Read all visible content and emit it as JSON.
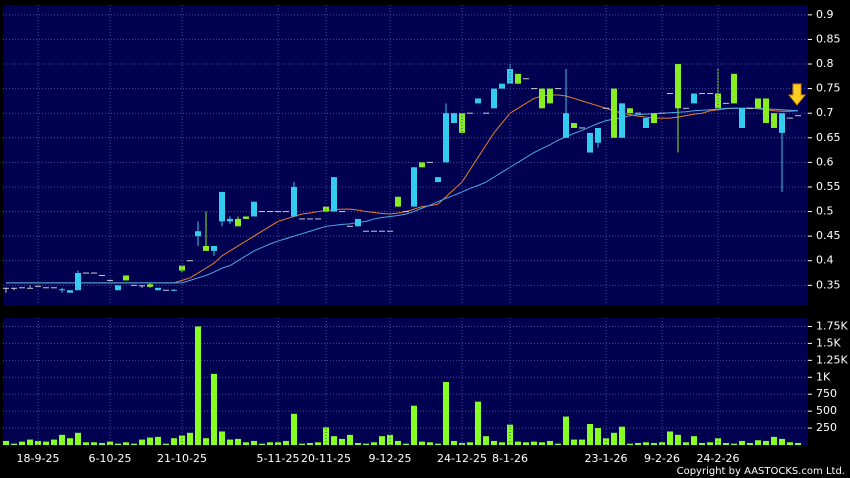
{
  "chart_data": [
    {
      "type": "candlestick",
      "open": [
        0.345,
        0.345,
        0.345,
        0.345,
        0.348,
        0.345,
        0.345,
        0.34,
        0.335,
        0.34,
        0.375,
        0.375,
        0.37,
        0.36,
        0.34,
        0.37,
        0.35,
        0.35,
        0.352,
        0.34,
        0.34,
        0.34,
        0.39,
        0.4,
        0.45,
        0.43,
        0.42,
        0.48,
        0.48,
        0.485,
        0.49,
        0.49,
        0.5,
        0.5,
        0.5,
        0.5,
        0.49,
        0.485,
        0.485,
        0.485,
        0.51,
        0.5,
        0.5,
        0.47,
        0.47,
        0.46,
        0.46,
        0.46,
        0.46,
        0.53,
        0.5,
        0.51,
        0.6,
        0.6,
        0.56,
        0.6,
        0.68,
        0.7,
        0.7,
        0.72,
        0.7,
        0.71,
        0.75,
        0.76,
        0.78,
        0.77,
        0.75,
        0.75,
        0.75,
        0.75,
        0.65,
        0.68,
        0.67,
        0.62,
        0.64,
        0.71,
        0.75,
        0.65,
        0.71,
        0.7,
        0.67,
        0.7,
        0.7,
        0.74,
        0.8,
        0.71,
        0.72,
        0.74,
        0.74,
        0.74,
        0.72,
        0.78,
        0.67,
        0.71,
        0.73,
        0.73,
        0.7,
        0.66,
        0.69,
        0.695
      ],
      "high": [
        0.345,
        0.345,
        0.345,
        0.35,
        0.348,
        0.345,
        0.345,
        0.345,
        0.34,
        0.38,
        0.375,
        0.375,
        0.37,
        0.36,
        0.35,
        0.37,
        0.35,
        0.35,
        0.355,
        0.345,
        0.34,
        0.342,
        0.39,
        0.4,
        0.48,
        0.5,
        0.43,
        0.54,
        0.49,
        0.49,
        0.49,
        0.52,
        0.5,
        0.5,
        0.5,
        0.5,
        0.56,
        0.485,
        0.485,
        0.485,
        0.51,
        0.57,
        0.5,
        0.47,
        0.485,
        0.46,
        0.46,
        0.46,
        0.46,
        0.53,
        0.5,
        0.59,
        0.6,
        0.6,
        0.57,
        0.72,
        0.7,
        0.7,
        0.7,
        0.73,
        0.7,
        0.75,
        0.76,
        0.8,
        0.78,
        0.77,
        0.75,
        0.75,
        0.75,
        0.75,
        0.79,
        0.68,
        0.67,
        0.66,
        0.67,
        0.71,
        0.75,
        0.72,
        0.71,
        0.7,
        0.69,
        0.7,
        0.7,
        0.74,
        0.8,
        0.71,
        0.74,
        0.74,
        0.74,
        0.79,
        0.72,
        0.78,
        0.71,
        0.71,
        0.73,
        0.73,
        0.7,
        0.7,
        0.69,
        0.695
      ],
      "low": [
        0.335,
        0.34,
        0.345,
        0.345,
        0.348,
        0.345,
        0.345,
        0.335,
        0.335,
        0.34,
        0.375,
        0.375,
        0.37,
        0.36,
        0.34,
        0.36,
        0.35,
        0.345,
        0.345,
        0.34,
        0.34,
        0.338,
        0.375,
        0.4,
        0.43,
        0.42,
        0.41,
        0.47,
        0.475,
        0.47,
        0.485,
        0.49,
        0.5,
        0.5,
        0.5,
        0.5,
        0.49,
        0.485,
        0.485,
        0.485,
        0.5,
        0.5,
        0.5,
        0.47,
        0.47,
        0.46,
        0.46,
        0.46,
        0.46,
        0.51,
        0.5,
        0.51,
        0.59,
        0.6,
        0.56,
        0.6,
        0.68,
        0.66,
        0.7,
        0.72,
        0.7,
        0.71,
        0.75,
        0.76,
        0.76,
        0.77,
        0.75,
        0.71,
        0.72,
        0.75,
        0.65,
        0.67,
        0.67,
        0.62,
        0.63,
        0.71,
        0.65,
        0.65,
        0.7,
        0.7,
        0.67,
        0.68,
        0.7,
        0.74,
        0.62,
        0.71,
        0.72,
        0.74,
        0.74,
        0.71,
        0.72,
        0.72,
        0.67,
        0.71,
        0.71,
        0.68,
        0.67,
        0.54,
        0.69,
        0.695
      ],
      "close": [
        0.345,
        0.345,
        0.345,
        0.345,
        0.348,
        0.345,
        0.345,
        0.342,
        0.34,
        0.375,
        0.375,
        0.375,
        0.37,
        0.36,
        0.35,
        0.36,
        0.35,
        0.35,
        0.347,
        0.345,
        0.34,
        0.341,
        0.38,
        0.4,
        0.46,
        0.42,
        0.43,
        0.54,
        0.485,
        0.47,
        0.485,
        0.52,
        0.5,
        0.5,
        0.5,
        0.5,
        0.55,
        0.485,
        0.485,
        0.485,
        0.5,
        0.57,
        0.5,
        0.47,
        0.485,
        0.46,
        0.46,
        0.46,
        0.46,
        0.51,
        0.5,
        0.59,
        0.59,
        0.6,
        0.57,
        0.7,
        0.7,
        0.66,
        0.7,
        0.73,
        0.7,
        0.75,
        0.76,
        0.79,
        0.76,
        0.77,
        0.75,
        0.71,
        0.72,
        0.75,
        0.7,
        0.67,
        0.67,
        0.66,
        0.67,
        0.71,
        0.65,
        0.72,
        0.7,
        0.7,
        0.69,
        0.68,
        0.7,
        0.74,
        0.71,
        0.71,
        0.74,
        0.74,
        0.74,
        0.71,
        0.72,
        0.72,
        0.71,
        0.71,
        0.71,
        0.68,
        0.67,
        0.7,
        0.69,
        0.695
      ],
      "up_color": "#33ccee",
      "down_color": "#88ee22",
      "flat_color": "#cccccc",
      "series": [
        {
          "color": "#e8802a",
          "values": [
            0.355,
            0.355,
            0.355,
            0.355,
            0.355,
            0.355,
            0.355,
            0.355,
            0.355,
            0.355,
            0.355,
            0.355,
            0.355,
            0.355,
            0.355,
            0.355,
            0.355,
            0.355,
            0.355,
            0.355,
            0.355,
            0.355,
            0.36,
            0.365,
            0.375,
            0.385,
            0.395,
            0.41,
            0.42,
            0.43,
            0.44,
            0.45,
            0.46,
            0.47,
            0.48,
            0.485,
            0.49,
            0.495,
            0.497,
            0.5,
            0.502,
            0.504,
            0.505,
            0.505,
            0.503,
            0.5,
            0.498,
            0.496,
            0.495,
            0.497,
            0.5,
            0.505,
            0.51,
            0.512,
            0.515,
            0.53,
            0.545,
            0.56,
            0.585,
            0.61,
            0.635,
            0.66,
            0.68,
            0.7,
            0.71,
            0.72,
            0.73,
            0.735,
            0.737,
            0.737,
            0.735,
            0.73,
            0.725,
            0.72,
            0.715,
            0.71,
            0.705,
            0.7,
            0.697,
            0.694,
            0.692,
            0.69,
            0.69,
            0.69,
            0.692,
            0.695,
            0.698,
            0.7,
            0.705,
            0.707,
            0.709,
            0.71,
            0.71,
            0.71,
            0.709,
            0.707,
            0.705,
            0.704,
            0.704,
            0.705
          ]
        },
        {
          "color": "#4aa8e8",
          "values": [
            0.355,
            0.355,
            0.355,
            0.355,
            0.355,
            0.355,
            0.355,
            0.355,
            0.355,
            0.355,
            0.355,
            0.355,
            0.355,
            0.355,
            0.355,
            0.355,
            0.355,
            0.355,
            0.355,
            0.355,
            0.355,
            0.355,
            0.355,
            0.36,
            0.365,
            0.37,
            0.377,
            0.385,
            0.39,
            0.4,
            0.41,
            0.42,
            0.427,
            0.434,
            0.44,
            0.445,
            0.45,
            0.455,
            0.46,
            0.465,
            0.47,
            0.472,
            0.474,
            0.475,
            0.478,
            0.48,
            0.485,
            0.488,
            0.49,
            0.492,
            0.495,
            0.5,
            0.507,
            0.513,
            0.52,
            0.527,
            0.533,
            0.54,
            0.547,
            0.553,
            0.56,
            0.57,
            0.58,
            0.59,
            0.6,
            0.61,
            0.62,
            0.628,
            0.636,
            0.645,
            0.652,
            0.659,
            0.665,
            0.672,
            0.679,
            0.685,
            0.688,
            0.691,
            0.695,
            0.697,
            0.698,
            0.699,
            0.7,
            0.701,
            0.702,
            0.703,
            0.705,
            0.706,
            0.707,
            0.708,
            0.71,
            0.71,
            0.71,
            0.71,
            0.71,
            0.709,
            0.708,
            0.707,
            0.706,
            0.705
          ]
        }
      ],
      "ylim": [
        0.31,
        0.92
      ],
      "yticks": [
        0.35,
        0.4,
        0.45,
        0.5,
        0.55,
        0.6,
        0.65,
        0.7,
        0.75,
        0.8,
        0.85,
        0.9
      ],
      "grid": true
    },
    {
      "type": "bar",
      "categories": [
        null,
        null,
        null,
        null,
        "18-9-25",
        null,
        null,
        null,
        null,
        null,
        null,
        null,
        null,
        "6-10-25",
        null,
        null,
        null,
        null,
        null,
        null,
        null,
        null,
        "21-10-25",
        null,
        null,
        null,
        null,
        null,
        null,
        null,
        null,
        null,
        null,
        null,
        "5-11-25",
        null,
        null,
        null,
        null,
        null,
        "20-11-25",
        null,
        null,
        null,
        null,
        null,
        null,
        null,
        "9-12-25",
        null,
        null,
        null,
        null,
        null,
        null,
        null,
        null,
        "24-12-25",
        null,
        null,
        null,
        null,
        null,
        "8-1-26",
        null,
        null,
        null,
        null,
        null,
        null,
        null,
        null,
        null,
        null,
        null,
        "23-1-26",
        null,
        null,
        null,
        null,
        null,
        null,
        "9-2-26",
        null,
        null,
        null,
        null,
        null,
        null,
        "24-2-26",
        null,
        null,
        null,
        null,
        null,
        null,
        null,
        null,
        null,
        null
      ],
      "values": [
        60,
        20,
        50,
        80,
        60,
        50,
        80,
        150,
        100,
        180,
        40,
        40,
        30,
        50,
        20,
        40,
        20,
        80,
        110,
        120,
        20,
        100,
        140,
        180,
        1750,
        100,
        1050,
        200,
        80,
        90,
        40,
        60,
        20,
        40,
        40,
        60,
        460,
        20,
        30,
        40,
        260,
        130,
        90,
        150,
        30,
        20,
        40,
        130,
        150,
        60,
        20,
        580,
        50,
        40,
        20,
        930,
        60,
        30,
        40,
        640,
        130,
        60,
        40,
        300,
        50,
        40,
        50,
        40,
        60,
        20,
        420,
        80,
        80,
        310,
        250,
        100,
        180,
        270,
        20,
        30,
        40,
        30,
        40,
        200,
        150,
        40,
        130,
        30,
        40,
        100,
        30,
        20,
        60,
        30,
        70,
        60,
        120,
        90,
        40,
        30
      ],
      "color": "#88ff22",
      "ylim": [
        0,
        1875
      ],
      "yticks": [
        250,
        500,
        750,
        {
          "value": 1000,
          "label": "1K"
        },
        {
          "value": 1250,
          "label": "1.25K"
        },
        {
          "value": 1500,
          "label": "1.5K"
        },
        {
          "value": 1750,
          "label": "1.75K"
        }
      ],
      "grid": true
    }
  ],
  "copyright": "Copyright by AASTOCKS.com Ltd."
}
